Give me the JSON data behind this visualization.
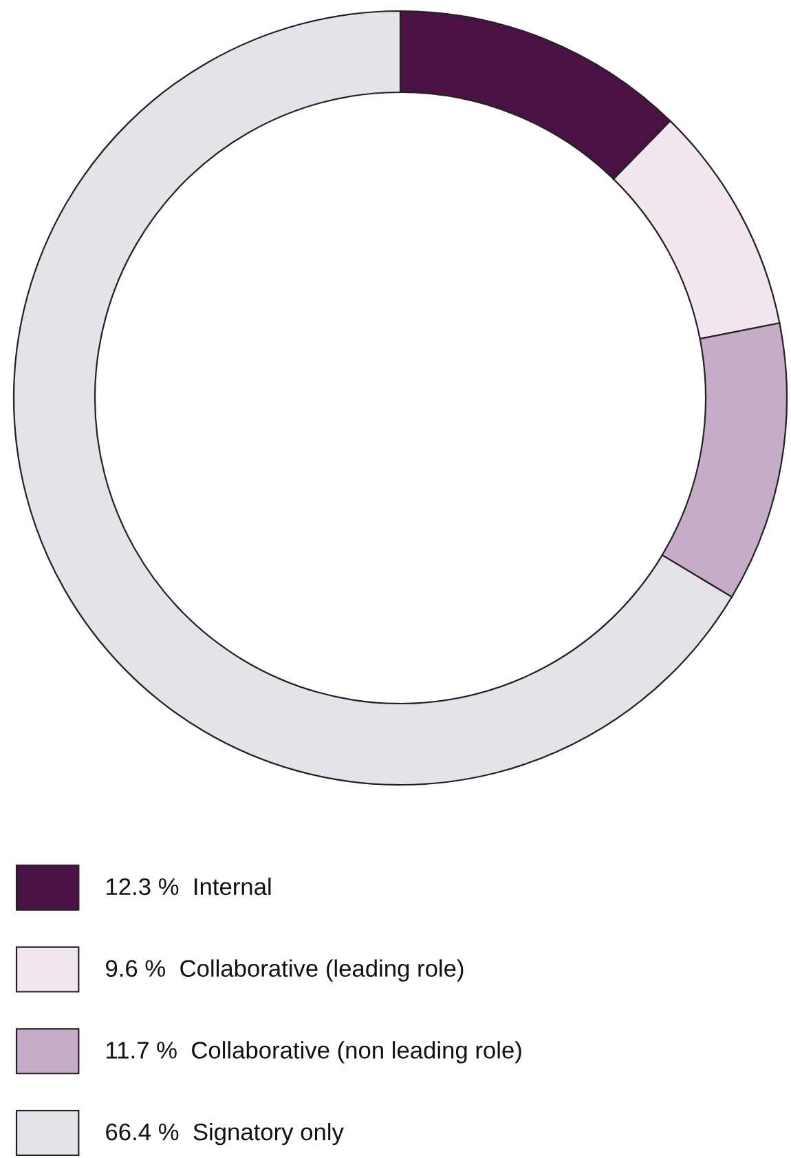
{
  "chart_data": {
    "type": "donut",
    "categories": [
      "Internal",
      "Collaborative (leading role)",
      "Collaborative (non leading role)",
      "Signatory only"
    ],
    "values": [
      12.3,
      9.6,
      11.7,
      66.4
    ],
    "colors": [
      "#4a1242",
      "#f2e6f1",
      "#c6acc9",
      "#e6e2ea"
    ],
    "value_labels": [
      "12.3 %",
      "9.6 %",
      "11.7 %",
      "66.4 %"
    ],
    "legend": "bottom"
  }
}
